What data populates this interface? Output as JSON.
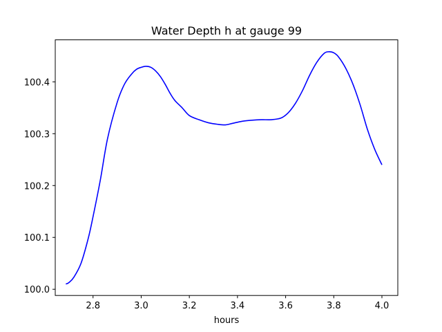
{
  "chart_data": {
    "type": "line",
    "title": "Water Depth h at gauge 99",
    "xlabel": "hours",
    "ylabel": "",
    "xlim": [
      2.643,
      4.066
    ],
    "ylim": [
      99.988,
      100.481
    ],
    "grid": false,
    "xticks": [
      2.8,
      3.0,
      3.2,
      3.4,
      3.6,
      3.8,
      4.0
    ],
    "xtick_labels": [
      "2.8",
      "3.0",
      "3.2",
      "3.4",
      "3.6",
      "3.8",
      "4.0"
    ],
    "yticks": [
      100.0,
      100.1,
      100.2,
      100.3,
      100.4
    ],
    "ytick_labels": [
      "100.0",
      "100.1",
      "100.2",
      "100.3",
      "100.4"
    ],
    "series": [
      {
        "name": "",
        "color": "#0000ff",
        "x": [
          2.687,
          2.7,
          2.72,
          2.75,
          2.78,
          2.8,
          2.83,
          2.86,
          2.9,
          2.93,
          2.96,
          2.98,
          3.0,
          3.02,
          3.04,
          3.06,
          3.08,
          3.1,
          3.12,
          3.14,
          3.17,
          3.2,
          3.24,
          3.28,
          3.32,
          3.35,
          3.38,
          3.42,
          3.46,
          3.5,
          3.54,
          3.58,
          3.61,
          3.64,
          3.67,
          3.7,
          3.73,
          3.76,
          3.78,
          3.8,
          3.82,
          3.85,
          3.88,
          3.91,
          3.94,
          3.97,
          4.0
        ],
        "y": [
          100.01,
          100.013,
          100.023,
          100.05,
          100.098,
          100.14,
          100.21,
          100.29,
          100.36,
          100.395,
          100.415,
          100.424,
          100.428,
          100.43,
          100.428,
          100.421,
          100.41,
          100.395,
          100.378,
          100.364,
          100.35,
          100.335,
          100.327,
          100.321,
          100.318,
          100.317,
          100.32,
          100.324,
          100.326,
          100.327,
          100.327,
          100.33,
          100.34,
          100.358,
          100.383,
          100.413,
          100.438,
          100.455,
          100.458,
          100.456,
          100.448,
          100.426,
          100.395,
          100.355,
          100.308,
          100.27,
          100.24
        ]
      }
    ]
  }
}
